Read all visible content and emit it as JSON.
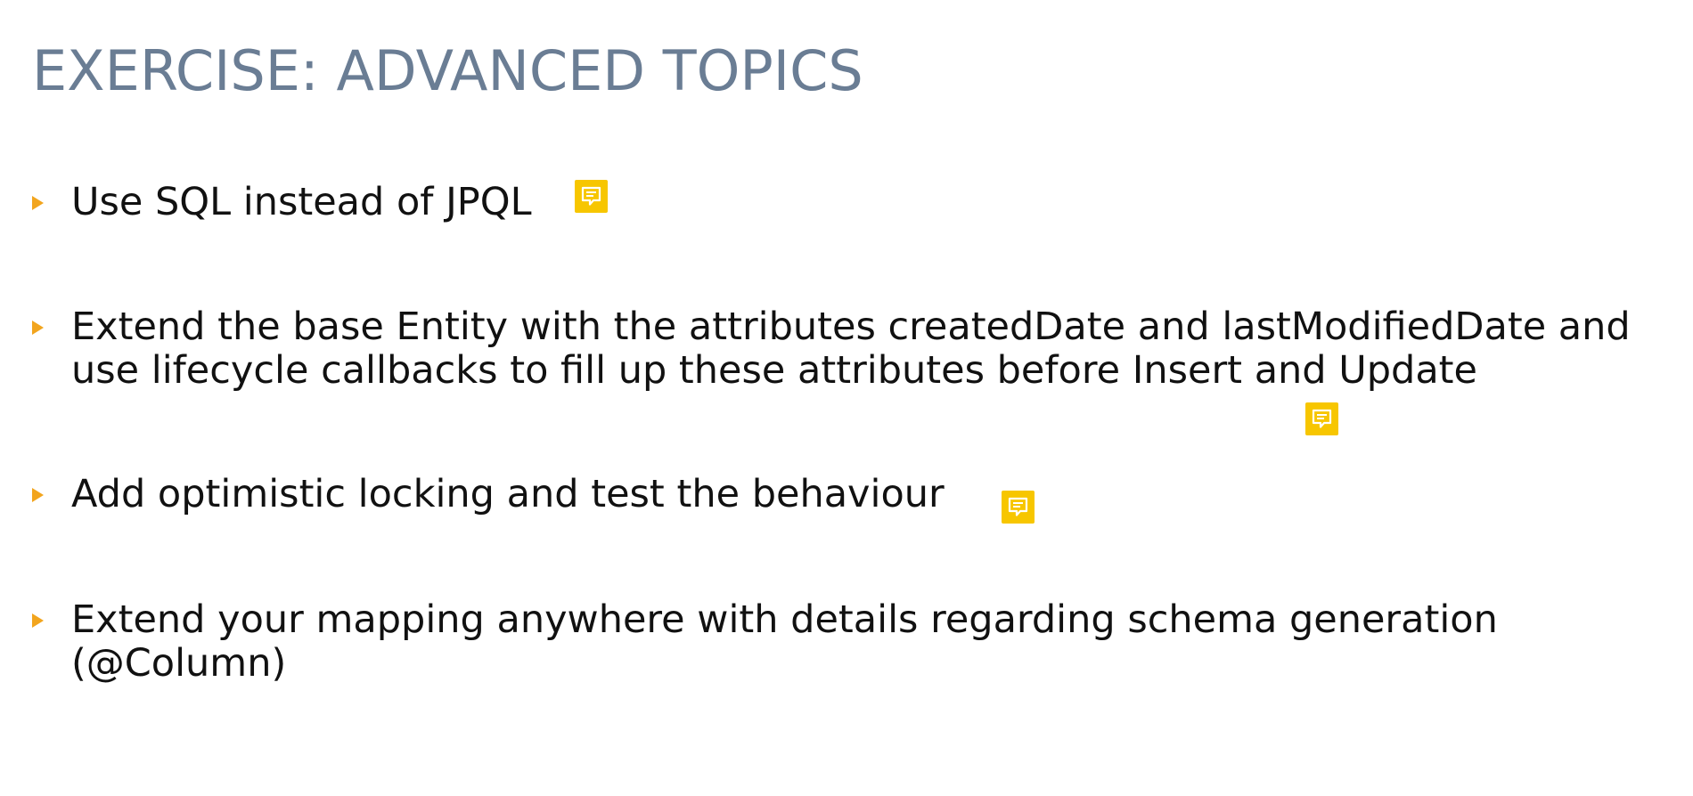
{
  "slide": {
    "title": "EXERCISE: ADVANCED TOPICS",
    "accent_color": "#f2a51e",
    "title_color": "#6a7d94",
    "comment_color": "#f7c600",
    "bullets": [
      {
        "lines": [
          "Use SQL instead of JPQL"
        ]
      },
      {
        "lines": [
          "Extend the base Entity with the attributes createdDate and lastModifiedDate and",
          "use lifecycle callbacks to fill up these attributes before Insert and Update"
        ]
      },
      {
        "lines": [
          "Add optimistic locking and test the behaviour"
        ]
      },
      {
        "lines": [
          "Extend your mapping anywhere with details regarding schema generation",
          "(@Column)"
        ]
      }
    ],
    "comments": [
      {
        "icon": "comment-icon"
      },
      {
        "icon": "comment-icon"
      },
      {
        "icon": "comment-icon"
      }
    ]
  }
}
